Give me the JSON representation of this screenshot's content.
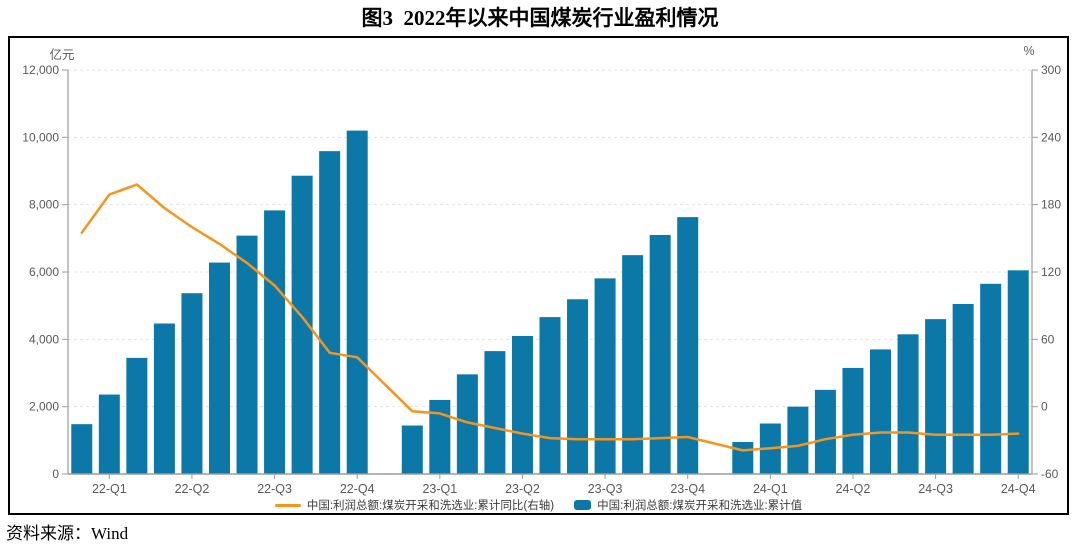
{
  "title": "图3  2022年以来中国煤炭行业盈利情况",
  "source_note": "资料来源：Wind",
  "axis_units": {
    "left": "亿元",
    "right": "%"
  },
  "colors": {
    "bar": "#0b78a8",
    "line": "#f7941e",
    "grid": "#e3e3e3",
    "axis": "#9b9b9b",
    "tick_label": "#595959",
    "frame": "#000000"
  },
  "legend": [
    {
      "type": "line",
      "label": "中国:利润总额:煤炭开采和洗选业:累计同比(右轴)"
    },
    {
      "type": "bar",
      "label": "中国:利润总额:煤炭开采和洗选业:累计值"
    }
  ],
  "chart_data": {
    "type": "bar",
    "subtype": "combo-bar-line",
    "bar_series_name": "中国:利润总额:煤炭开采和洗选业:累计值",
    "line_series_name": "中国:利润总额:煤炭开采和洗选业:累计同比(右轴)",
    "grid": "horizontal-dashed",
    "legend_position": "bottom-center",
    "slots_total": 35,
    "left_axis": {
      "label": "亿元",
      "min": 0,
      "max": 12000,
      "step": 2000,
      "tick_labels": [
        "0",
        "2,000",
        "4,000",
        "6,000",
        "8,000",
        "10,000",
        "12,000"
      ]
    },
    "right_axis": {
      "label": "%",
      "min": -60,
      "max": 300,
      "step": 60,
      "tick_labels": [
        "-60",
        "0",
        "60",
        "120",
        "180",
        "240",
        "300"
      ]
    },
    "x_ticks": [
      {
        "label": "22-Q1",
        "slot": 1
      },
      {
        "label": "22-Q2",
        "slot": 4
      },
      {
        "label": "22-Q3",
        "slot": 7
      },
      {
        "label": "22-Q4",
        "slot": 10
      },
      {
        "label": "23-Q1",
        "slot": 13
      },
      {
        "label": "23-Q2",
        "slot": 16
      },
      {
        "label": "23-Q3",
        "slot": 19
      },
      {
        "label": "23-Q4",
        "slot": 22
      },
      {
        "label": "24-Q1",
        "slot": 25
      },
      {
        "label": "24-Q2",
        "slot": 28
      },
      {
        "label": "24-Q3",
        "slot": 31
      },
      {
        "label": "24-Q4",
        "slot": 34
      }
    ],
    "points": [
      {
        "month": "2022-02",
        "slot": 0,
        "profit_100m_yuan": 1480,
        "yoy_pct": 155
      },
      {
        "month": "2022-03",
        "slot": 1,
        "profit_100m_yuan": 2360,
        "yoy_pct": 189
      },
      {
        "month": "2022-04",
        "slot": 2,
        "profit_100m_yuan": 3450,
        "yoy_pct": 198
      },
      {
        "month": "2022-05",
        "slot": 3,
        "profit_100m_yuan": 4470,
        "yoy_pct": 177
      },
      {
        "month": "2022-06",
        "slot": 4,
        "profit_100m_yuan": 5370,
        "yoy_pct": 160
      },
      {
        "month": "2022-07",
        "slot": 5,
        "profit_100m_yuan": 6280,
        "yoy_pct": 145
      },
      {
        "month": "2022-08",
        "slot": 6,
        "profit_100m_yuan": 7080,
        "yoy_pct": 128
      },
      {
        "month": "2022-09",
        "slot": 7,
        "profit_100m_yuan": 7830,
        "yoy_pct": 108
      },
      {
        "month": "2022-10",
        "slot": 8,
        "profit_100m_yuan": 8860,
        "yoy_pct": 80
      },
      {
        "month": "2022-11",
        "slot": 9,
        "profit_100m_yuan": 9590,
        "yoy_pct": 48
      },
      {
        "month": "2022-12",
        "slot": 10,
        "profit_100m_yuan": 10200,
        "yoy_pct": 44
      },
      {
        "month": "2023-02",
        "slot": 12,
        "profit_100m_yuan": 1440,
        "yoy_pct": -4
      },
      {
        "month": "2023-03",
        "slot": 13,
        "profit_100m_yuan": 2200,
        "yoy_pct": -6
      },
      {
        "month": "2023-04",
        "slot": 14,
        "profit_100m_yuan": 2960,
        "yoy_pct": -14
      },
      {
        "month": "2023-05",
        "slot": 15,
        "profit_100m_yuan": 3650,
        "yoy_pct": -19
      },
      {
        "month": "2023-06",
        "slot": 16,
        "profit_100m_yuan": 4100,
        "yoy_pct": -24
      },
      {
        "month": "2023-07",
        "slot": 17,
        "profit_100m_yuan": 4660,
        "yoy_pct": -28
      },
      {
        "month": "2023-08",
        "slot": 18,
        "profit_100m_yuan": 5190,
        "yoy_pct": -29
      },
      {
        "month": "2023-09",
        "slot": 19,
        "profit_100m_yuan": 5810,
        "yoy_pct": -29
      },
      {
        "month": "2023-10",
        "slot": 20,
        "profit_100m_yuan": 6500,
        "yoy_pct": -29
      },
      {
        "month": "2023-11",
        "slot": 21,
        "profit_100m_yuan": 7100,
        "yoy_pct": -28
      },
      {
        "month": "2023-12",
        "slot": 22,
        "profit_100m_yuan": 7630,
        "yoy_pct": -27
      },
      {
        "month": "2024-02",
        "slot": 24,
        "profit_100m_yuan": 950,
        "yoy_pct": -39
      },
      {
        "month": "2024-03",
        "slot": 25,
        "profit_100m_yuan": 1500,
        "yoy_pct": -37
      },
      {
        "month": "2024-04",
        "slot": 26,
        "profit_100m_yuan": 2000,
        "yoy_pct": -35
      },
      {
        "month": "2024-05",
        "slot": 27,
        "profit_100m_yuan": 2500,
        "yoy_pct": -29
      },
      {
        "month": "2024-06",
        "slot": 28,
        "profit_100m_yuan": 3150,
        "yoy_pct": -25
      },
      {
        "month": "2024-07",
        "slot": 29,
        "profit_100m_yuan": 3700,
        "yoy_pct": -23
      },
      {
        "month": "2024-08",
        "slot": 30,
        "profit_100m_yuan": 4150,
        "yoy_pct": -23
      },
      {
        "month": "2024-09",
        "slot": 31,
        "profit_100m_yuan": 4600,
        "yoy_pct": -25
      },
      {
        "month": "2024-10",
        "slot": 32,
        "profit_100m_yuan": 5050,
        "yoy_pct": -25
      },
      {
        "month": "2024-11",
        "slot": 33,
        "profit_100m_yuan": 5650,
        "yoy_pct": -25
      },
      {
        "month": "2024-12",
        "slot": 34,
        "profit_100m_yuan": 6050,
        "yoy_pct": -24
      }
    ]
  }
}
